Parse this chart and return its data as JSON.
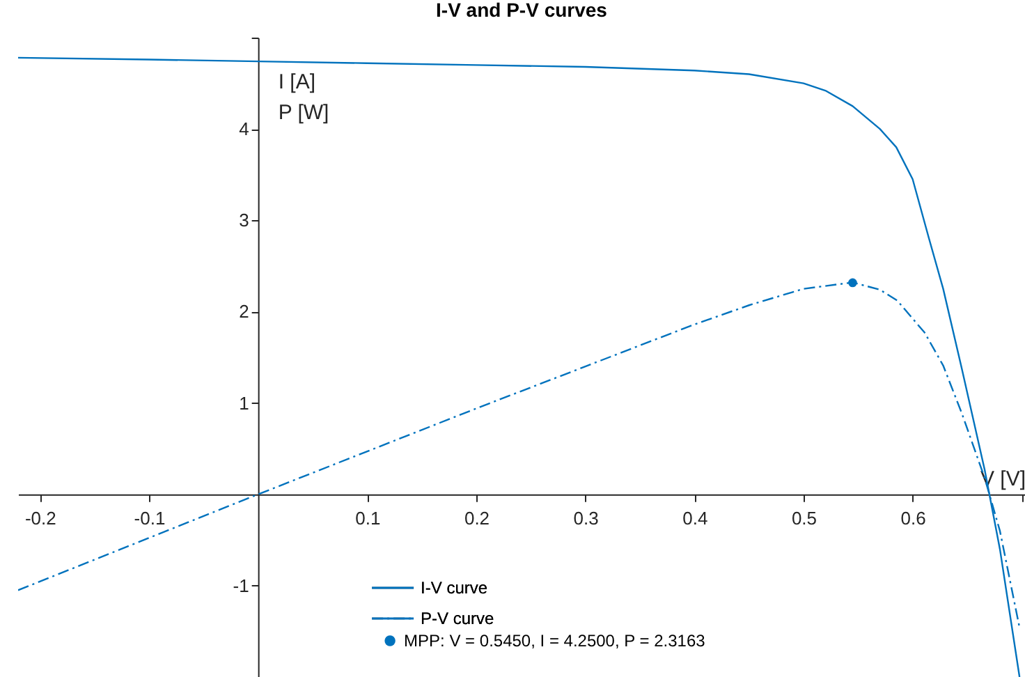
{
  "chart_data": {
    "type": "line",
    "title": "I-V and P-V curves",
    "xlabel": "V [V]",
    "ylabel": "I [A]\nP [W]",
    "xlim": [
      -0.22,
      0.703
    ],
    "ylim": [
      -2,
      5
    ],
    "xticks": [
      -0.2,
      -0.1,
      0.1,
      0.2,
      0.3,
      0.4,
      0.5,
      0.6,
      {
        "value": 0.7,
        "label": null
      }
    ],
    "yticks": [
      {
        "value": -2,
        "label": null
      },
      -1,
      1,
      2,
      3,
      4,
      {
        "value": 5,
        "label": null
      }
    ],
    "grid": false,
    "legend": "bottom",
    "series": [
      {
        "name": "I-V curve",
        "type": "line",
        "line_style": "solid",
        "color": "#0072bd",
        "x": [
          -0.22,
          -0.1,
          0,
          0.1,
          0.2,
          0.3,
          0.4,
          0.45,
          0.5,
          0.52,
          0.545,
          0.57,
          0.585,
          0.6,
          0.615,
          0.628,
          0.645,
          0.666,
          0.68,
          0.698
        ],
        "values": [
          4.78,
          4.76,
          4.74,
          4.72,
          4.7,
          4.68,
          4.64,
          4.6,
          4.5,
          4.42,
          4.25,
          4.0,
          3.8,
          3.45,
          2.8,
          2.25,
          1.38,
          0.27,
          -0.6,
          -2.0
        ]
      },
      {
        "name": "P-V curve",
        "type": "line",
        "line_style": "dashdot",
        "color": "#0072bd",
        "x": [
          -0.22,
          0,
          0.1,
          0.2,
          0.3,
          0.4,
          0.45,
          0.5,
          0.545,
          0.57,
          0.586,
          0.611,
          0.628,
          0.645,
          0.666,
          0.68,
          0.698
        ],
        "values": [
          -1.05,
          0,
          0.47,
          0.94,
          1.4,
          1.86,
          2.07,
          2.25,
          2.32,
          2.24,
          2.12,
          1.77,
          1.41,
          0.89,
          0.18,
          -0.4,
          -1.46
        ]
      },
      {
        "name": "MPP: V = 0.5450, I = 4.2500, P = 2.3163",
        "type": "scatter",
        "marker": "circle",
        "color": "#0072bd",
        "x": [
          0.545
        ],
        "values": [
          2.3163
        ]
      }
    ]
  }
}
